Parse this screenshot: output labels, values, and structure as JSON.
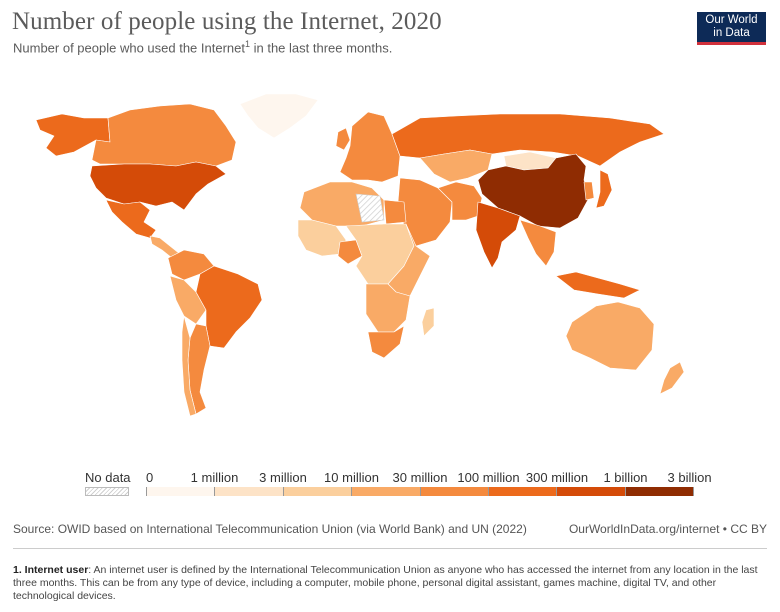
{
  "header": {
    "title": "Number of people using the Internet, 2020",
    "subtitle": "Number of people who used the Internet",
    "subtitle_sup": "1",
    "subtitle_rest": " in the last three months."
  },
  "logo": {
    "line1": "Our World",
    "line2": "in Data"
  },
  "legend": {
    "no_data_label": "No data",
    "ticks": [
      "0",
      "1 million",
      "3 million",
      "10 million",
      "30 million",
      "100 million",
      "300 million",
      "1 billion",
      "3 billion"
    ],
    "colors": [
      "#fef6ee",
      "#fde3c7",
      "#fbcf9d",
      "#f9aa66",
      "#f48a3e",
      "#ec6a1c",
      "#d44b08",
      "#8f2c02"
    ]
  },
  "footer": {
    "source": "Source: OWID based on International Telecommunication Union (via World Bank) and UN (2022)",
    "credit": "OurWorldInData.org/internet • CC BY",
    "footnote_term": "1. Internet user",
    "footnote_text": ": An internet user is defined by the International Telecommunication Union as anyone who has accessed the internet from any location in the last three months. This can be from any type of device, including a computer, mobile phone, personal digital assistant, games machine, digital TV, and other technological devices."
  },
  "map": {
    "regions": [
      {
        "name": "canada",
        "bin": 4
      },
      {
        "name": "alaska",
        "bin": 5
      },
      {
        "name": "greenland",
        "bin": 0
      },
      {
        "name": "united-states",
        "bin": 6
      },
      {
        "name": "mexico",
        "bin": 5
      },
      {
        "name": "central-america",
        "bin": 3
      },
      {
        "name": "brazil",
        "bin": 5
      },
      {
        "name": "argentina",
        "bin": 4
      },
      {
        "name": "colombia-venezuela",
        "bin": 4
      },
      {
        "name": "peru-bolivia",
        "bin": 3
      },
      {
        "name": "chile",
        "bin": 3
      },
      {
        "name": "europe",
        "bin": 4
      },
      {
        "name": "russia",
        "bin": 5
      },
      {
        "name": "north-africa",
        "bin": 3
      },
      {
        "name": "egypt",
        "bin": 4
      },
      {
        "name": "west-africa",
        "bin": 2
      },
      {
        "name": "nigeria",
        "bin": 4
      },
      {
        "name": "central-africa",
        "bin": 2
      },
      {
        "name": "east-africa",
        "bin": 3
      },
      {
        "name": "southern-africa",
        "bin": 3
      },
      {
        "name": "south-africa",
        "bin": 4
      },
      {
        "name": "middle-east",
        "bin": 4
      },
      {
        "name": "central-asia",
        "bin": 3
      },
      {
        "name": "iran-pakistan",
        "bin": 4
      },
      {
        "name": "india",
        "bin": 6
      },
      {
        "name": "china",
        "bin": 7
      },
      {
        "name": "mongolia",
        "bin": 1
      },
      {
        "name": "southeast-asia",
        "bin": 4
      },
      {
        "name": "indonesia",
        "bin": 5
      },
      {
        "name": "japan",
        "bin": 5
      },
      {
        "name": "korea",
        "bin": 4
      },
      {
        "name": "australia",
        "bin": 3
      },
      {
        "name": "new-zealand",
        "bin": 3
      },
      {
        "name": "madagascar",
        "bin": 2
      },
      {
        "name": "uk",
        "bin": 4
      }
    ]
  }
}
